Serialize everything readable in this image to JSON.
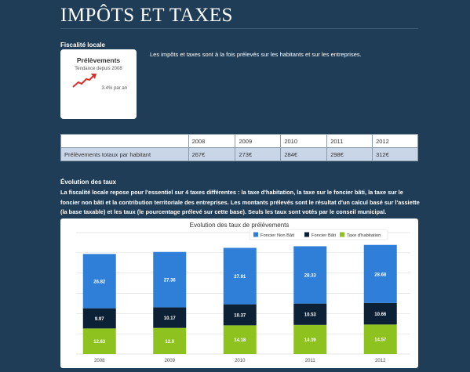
{
  "page": {
    "title": "IMPÔTS ET TAXES"
  },
  "fiscalite": {
    "heading": "Fiscalité locale",
    "intro": "Les impôts et taxes sont à la fois prélevés sur les habitants et sur les entreprises."
  },
  "kpi": {
    "title": "Prélèvements",
    "subtitle": "Tendance depuis 2008",
    "value": "3.4% par an",
    "trend_icon": "trend-up-arrow-icon"
  },
  "table": {
    "years": [
      "2008",
      "2009",
      "2010",
      "2011",
      "2012"
    ],
    "row_label": "Prélèvements totaux par habitant",
    "values": [
      "267€",
      "273€",
      "284€",
      "298€",
      "312€"
    ]
  },
  "evolution": {
    "heading": "Évolution des taux",
    "text": "La fiscalité locale repose pour l'essentiel sur 4 taxes différentes : la taxe d'habitation, la taxe sur le foncier bâti, la taxe sur le foncier non bâti et la contribution territoriale des entreprises. Les montants prélevés sont le résultat d'un calcul basé sur l'assiette (la base taxable) et les taux (le pourcentage prélevé sur cette base). Seuls les taux sont votés par le conseil municipal."
  },
  "chart_data": {
    "type": "bar",
    "stacked": true,
    "title": "Evolution des taux de prélèvements",
    "categories": [
      "2008",
      "2009",
      "2010",
      "2011",
      "2012"
    ],
    "series": [
      {
        "name": "Taxe d'habitation",
        "values": [
          12.63,
          12.9,
          14.18,
          14.39,
          14.57
        ],
        "color": "#8dc21f"
      },
      {
        "name": "Foncier Bâti",
        "values": [
          9.97,
          10.17,
          10.37,
          10.53,
          10.66
        ],
        "color": "#0d2136"
      },
      {
        "name": "Foncier Non Bâti",
        "values": [
          26.82,
          27.36,
          27.91,
          28.33,
          28.68
        ],
        "color": "#2f7ed8"
      }
    ],
    "legend_order": [
      "Foncier Non Bâti",
      "Foncier Bâti",
      "Taxe d'habitation"
    ],
    "legend_position": "top-right",
    "ylim": [
      0,
      60
    ],
    "grid": true
  }
}
